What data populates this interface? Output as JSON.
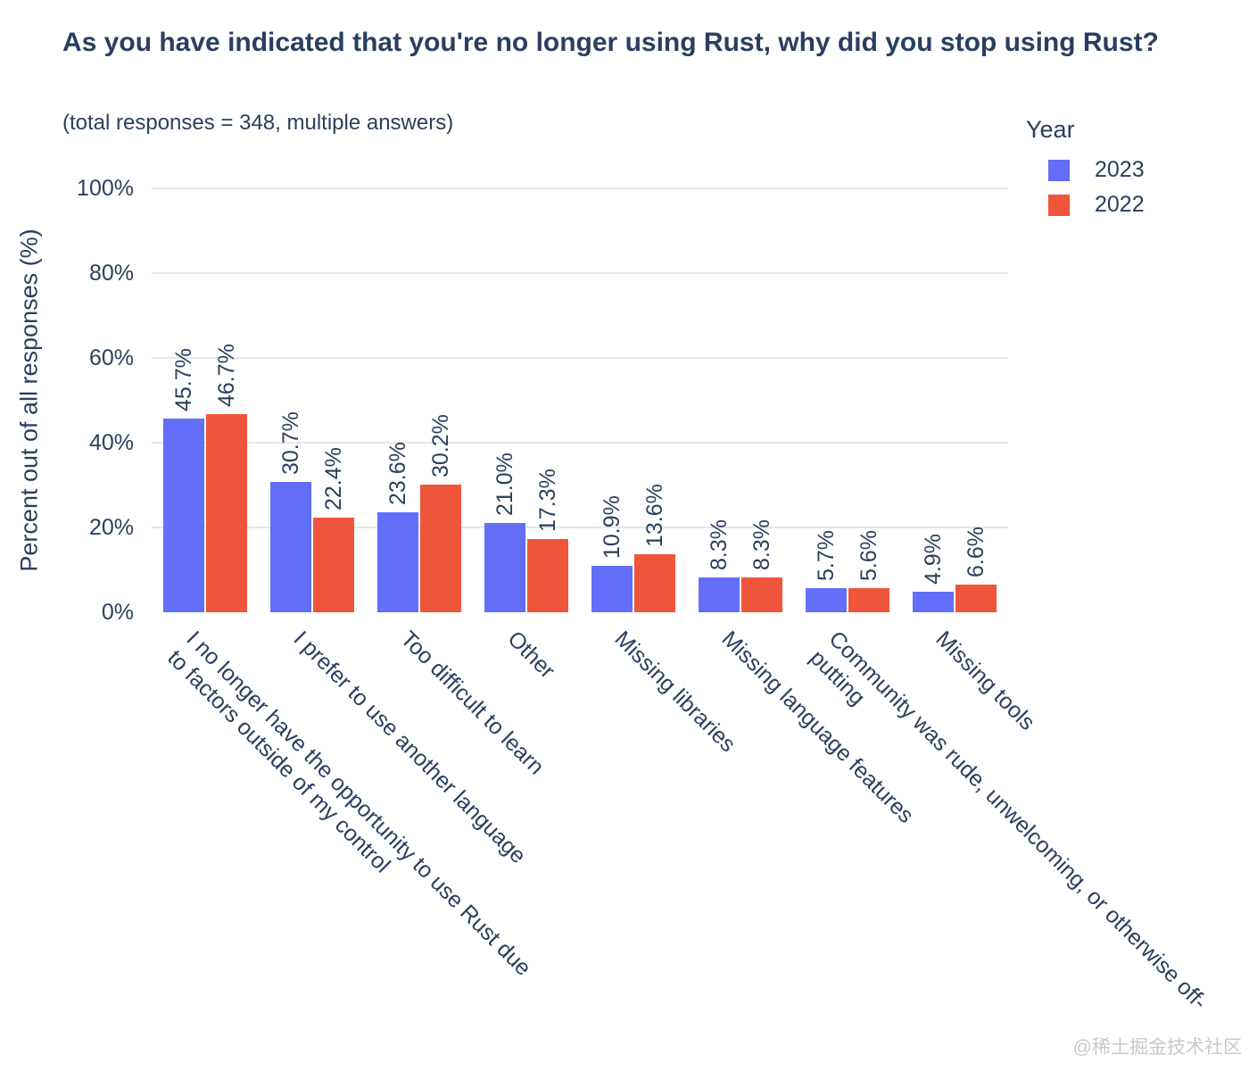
{
  "header": {
    "title": "As you have indicated that you're no longer using Rust, why did you stop using Rust?",
    "subtitle": "(total responses = 348, multiple answers)"
  },
  "watermark": "@稀土掘金技术社区",
  "chart_data": {
    "type": "bar",
    "title": "As you have indicated that you're no longer using Rust, why did you stop using Rust?",
    "subtitle": "(total responses = 348, multiple answers)",
    "xlabel": "",
    "ylabel": "Percent out of all responses (%)",
    "ylim": [
      0,
      100
    ],
    "yticks": [
      0,
      20,
      40,
      60,
      80,
      100
    ],
    "ytick_suffix": "%",
    "grid": true,
    "legend_title": "Year",
    "legend_position": "top-right",
    "bar_value_labels": true,
    "categories": [
      "I no longer have the opportunity to use Rust due to factors outside of my control",
      "I prefer to use another language",
      "Too difficult to learn",
      "Other",
      "Missing libraries",
      "Missing language features",
      "Community was rude, unwelcoming, or otherwise off-putting",
      "Missing tools"
    ],
    "category_display_lines": [
      [
        "I no longer have the opportunity to use Rust due",
        "to factors outside of my control"
      ],
      [
        "I prefer to use another language"
      ],
      [
        "Too difficult to learn"
      ],
      [
        "Other"
      ],
      [
        "Missing libraries"
      ],
      [
        "Missing language features"
      ],
      [
        "Community was rude, unwelcoming, or otherwise off-",
        "putting"
      ],
      [
        "Missing tools"
      ]
    ],
    "series": [
      {
        "name": "2023",
        "color": "#636EFA",
        "values": [
          45.7,
          30.7,
          23.6,
          21.0,
          10.9,
          8.3,
          5.7,
          4.9
        ]
      },
      {
        "name": "2022",
        "color": "#EF553B",
        "values": [
          46.7,
          22.4,
          30.2,
          17.3,
          13.6,
          8.3,
          5.6,
          6.6
        ]
      }
    ],
    "colors": {
      "text": "#2a3f5f",
      "grid": "#e7e7e9",
      "background": "#ffffff"
    }
  }
}
